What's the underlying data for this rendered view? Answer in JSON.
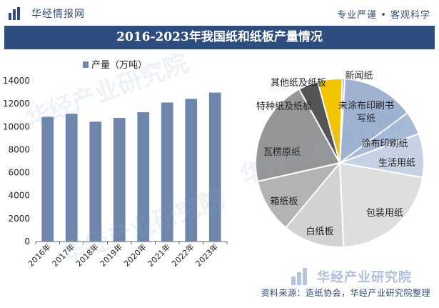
{
  "brand": {
    "name": "华经情报网",
    "slogan": "专业严谨 • 客观科学",
    "watermark": "华经产业研究院",
    "footer_brand": "华经产业研究院",
    "colors": {
      "primary": "#2e4d7f",
      "bar": "#6e86ab",
      "accent": "#f5c400"
    }
  },
  "title": "2016-2023年我国纸和纸板产量情况",
  "source": "资料来源：造纸协会，华经产业研究院整理",
  "chart_data": [
    {
      "type": "bar",
      "title": "",
      "legend": [
        "产量（万吨）"
      ],
      "categories": [
        "2016年",
        "2017年",
        "2018年",
        "2019年",
        "2020年",
        "2021年",
        "2022年",
        "2023年"
      ],
      "values": [
        10855,
        11130,
        10435,
        10765,
        11260,
        12105,
        12425,
        12965
      ],
      "ylim": [
        0,
        14000
      ],
      "yticks": [
        0,
        2000,
        4000,
        6000,
        8000,
        10000,
        12000,
        14000
      ],
      "xlabel": "",
      "ylabel": "",
      "grid": false
    },
    {
      "type": "pie",
      "title": "",
      "labels": [
        "新闻纸",
        "未涂布印刷书写纸",
        "涂布印刷纸",
        "生活用纸",
        "包装用纸",
        "白纸板",
        "箱纸板",
        "瓦楞原纸",
        "特种纸及纸板",
        "其他纸及纸板"
      ],
      "values": [
        0.5,
        13.9,
        4.5,
        8.4,
        21.5,
        11.8,
        10.4,
        20.5,
        3.8,
        4.7
      ],
      "colors": [
        "#9fb3d1",
        "#9fb3d1",
        "#a6b9d6",
        "#c5d1e4",
        "#dedede",
        "#d2d2d2",
        "#b3b3b3",
        "#969696",
        "#555555",
        "#f5c400"
      ]
    }
  ]
}
